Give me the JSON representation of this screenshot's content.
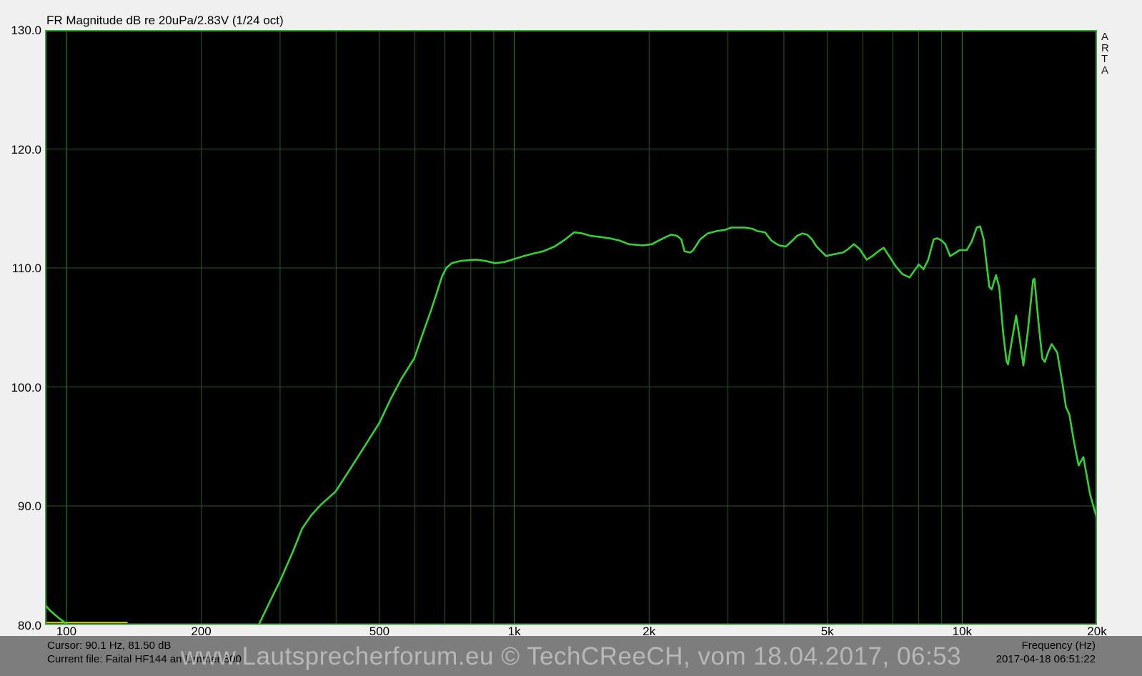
{
  "header": {
    "title": "FR Magnitude dB re 20uPa/2.83V (1/24 oct)"
  },
  "branding": {
    "vertical_label": "ARTA",
    "letters": [
      "A",
      "R",
      "T",
      "A"
    ]
  },
  "colors": {
    "page_bg": "#f0f0f0",
    "plot_bg": "#000000",
    "plot_border": "#3fa03f",
    "grid_minor": "#235c23",
    "grid_major": "#2d8f2d",
    "curve": "#32d232",
    "cursor": "#c8c832",
    "statusbar_bg": "#7d7d7d",
    "statusbar_text": "#000000",
    "watermark_text": "#c8c8c8"
  },
  "statusbar": {
    "cursor_text": "Cursor: 90.1 Hz, 81.50 dB",
    "file_text": "Current file: Faital HF144 an Limmer 800",
    "axis_label": "Frequency (Hz)",
    "timestamp": "2017-04-18  06:51:22",
    "watermark": "www.Lautsprecherforum.eu © TechCReeCH, vom 18.04.2017, 06:53"
  },
  "chart_data": {
    "type": "line",
    "title": "FR Magnitude dB re 20uPa/2.83V (1/24 oct)",
    "xlabel": "Frequency (Hz)",
    "ylabel": "dB",
    "x_scale": "log",
    "x_range_hz": [
      89.6,
      20000
    ],
    "y_range_db": [
      80,
      130
    ],
    "grid": "on",
    "y_ticks": [
      {
        "db": 130,
        "label": "130.0"
      },
      {
        "db": 120,
        "label": "120.0"
      },
      {
        "db": 110,
        "label": "110.0"
      },
      {
        "db": 100,
        "label": "100.0"
      },
      {
        "db": 90,
        "label": "90.0"
      },
      {
        "db": 80,
        "label": "80.0"
      }
    ],
    "x_ticks": [
      {
        "hz": 100,
        "label": "100"
      },
      {
        "hz": 200,
        "label": "200"
      },
      {
        "hz": 500,
        "label": "500"
      },
      {
        "hz": 1000,
        "label": "1k"
      },
      {
        "hz": 2000,
        "label": "2k"
      },
      {
        "hz": 5000,
        "label": "5k"
      },
      {
        "hz": 10000,
        "label": "10k"
      },
      {
        "hz": 20000,
        "label": "20k"
      }
    ],
    "y_gridlines_db": [
      120,
      110,
      100,
      90
    ],
    "x_gridlines": [
      {
        "hz": 100,
        "major": true
      },
      {
        "hz": 200
      },
      {
        "hz": 300
      },
      {
        "hz": 400
      },
      {
        "hz": 500
      },
      {
        "hz": 600
      },
      {
        "hz": 700
      },
      {
        "hz": 800
      },
      {
        "hz": 900
      },
      {
        "hz": 1000,
        "major": true
      },
      {
        "hz": 2000
      },
      {
        "hz": 3000
      },
      {
        "hz": 4000
      },
      {
        "hz": 5000
      },
      {
        "hz": 6000
      },
      {
        "hz": 7000
      },
      {
        "hz": 8000
      },
      {
        "hz": 9000
      },
      {
        "hz": 10000,
        "major": true
      }
    ],
    "cursor_marker": {
      "db": 80.2,
      "from_hz": 90,
      "to_hz": 137
    },
    "series": [
      {
        "name": "FR magnitude (1/24 oct)",
        "color": "#32d232",
        "points": [
          [
            89.6,
            81.7
          ],
          [
            92,
            81.2
          ],
          [
            96,
            80.6
          ],
          [
            100,
            80.1
          ],
          [
            104,
            79.5
          ],
          [
            115,
            78.6
          ],
          [
            150,
            78.0
          ],
          [
            220,
            78.2
          ],
          [
            255,
            79.0
          ],
          [
            268,
            79.9
          ],
          [
            285,
            82.0
          ],
          [
            300,
            83.7
          ],
          [
            320,
            86.1
          ],
          [
            336,
            88.1
          ],
          [
            352,
            89.2
          ],
          [
            370,
            90.1
          ],
          [
            399,
            91.2
          ],
          [
            430,
            93.1
          ],
          [
            465,
            95.1
          ],
          [
            500,
            97.0
          ],
          [
            530,
            99.0
          ],
          [
            560,
            100.7
          ],
          [
            598,
            102.4
          ],
          [
            625,
            104.5
          ],
          [
            650,
            106.3
          ],
          [
            670,
            107.8
          ],
          [
            690,
            109.3
          ],
          [
            705,
            110.0
          ],
          [
            725,
            110.4
          ],
          [
            760,
            110.6
          ],
          [
            820,
            110.7
          ],
          [
            860,
            110.6
          ],
          [
            906,
            110.4
          ],
          [
            950,
            110.5
          ],
          [
            990,
            110.7
          ],
          [
            1050,
            111.0
          ],
          [
            1100,
            111.2
          ],
          [
            1160,
            111.4
          ],
          [
            1230,
            111.8
          ],
          [
            1300,
            112.4
          ],
          [
            1360,
            113.0
          ],
          [
            1420,
            112.9
          ],
          [
            1480,
            112.7
          ],
          [
            1560,
            112.6
          ],
          [
            1630,
            112.5
          ],
          [
            1720,
            112.3
          ],
          [
            1800,
            112.0
          ],
          [
            1940,
            111.9
          ],
          [
            2030,
            112.0
          ],
          [
            2100,
            112.3
          ],
          [
            2180,
            112.6
          ],
          [
            2240,
            112.8
          ],
          [
            2310,
            112.7
          ],
          [
            2360,
            112.4
          ],
          [
            2400,
            111.4
          ],
          [
            2470,
            111.3
          ],
          [
            2510,
            111.5
          ],
          [
            2600,
            112.4
          ],
          [
            2700,
            112.9
          ],
          [
            2830,
            113.1
          ],
          [
            2950,
            113.2
          ],
          [
            3060,
            113.4
          ],
          [
            3270,
            113.4
          ],
          [
            3400,
            113.3
          ],
          [
            3490,
            113.1
          ],
          [
            3630,
            113.0
          ],
          [
            3750,
            112.3
          ],
          [
            3900,
            111.9
          ],
          [
            4040,
            111.8
          ],
          [
            4150,
            112.2
          ],
          [
            4280,
            112.7
          ],
          [
            4400,
            112.9
          ],
          [
            4510,
            112.8
          ],
          [
            4620,
            112.4
          ],
          [
            4730,
            111.8
          ],
          [
            4970,
            111.0
          ],
          [
            5090,
            111.1
          ],
          [
            5250,
            111.2
          ],
          [
            5420,
            111.3
          ],
          [
            5570,
            111.6
          ],
          [
            5730,
            112.0
          ],
          [
            5900,
            111.6
          ],
          [
            6120,
            110.7
          ],
          [
            6300,
            111.0
          ],
          [
            6500,
            111.4
          ],
          [
            6680,
            111.7
          ],
          [
            6900,
            110.9
          ],
          [
            7090,
            110.2
          ],
          [
            7350,
            109.5
          ],
          [
            7630,
            109.2
          ],
          [
            7900,
            110.0
          ],
          [
            8000,
            110.3
          ],
          [
            8200,
            109.9
          ],
          [
            8400,
            110.7
          ],
          [
            8640,
            112.4
          ],
          [
            8800,
            112.5
          ],
          [
            9000,
            112.3
          ],
          [
            9170,
            112.0
          ],
          [
            9400,
            111.0
          ],
          [
            9600,
            111.2
          ],
          [
            9870,
            111.5
          ],
          [
            10240,
            111.5
          ],
          [
            10500,
            112.2
          ],
          [
            10780,
            113.4
          ],
          [
            10970,
            113.5
          ],
          [
            11170,
            112.4
          ],
          [
            11300,
            110.8
          ],
          [
            11500,
            108.4
          ],
          [
            11640,
            108.2
          ],
          [
            11900,
            109.4
          ],
          [
            12100,
            108.4
          ],
          [
            12350,
            104.5
          ],
          [
            12560,
            102.2
          ],
          [
            12660,
            101.9
          ],
          [
            12900,
            103.8
          ],
          [
            13200,
            106.0
          ],
          [
            13450,
            104.0
          ],
          [
            13700,
            101.8
          ],
          [
            14000,
            104.5
          ],
          [
            14400,
            109.0
          ],
          [
            14500,
            109.1
          ],
          [
            14800,
            105.5
          ],
          [
            15100,
            102.4
          ],
          [
            15300,
            102.1
          ],
          [
            15550,
            102.9
          ],
          [
            15850,
            103.6
          ],
          [
            16300,
            102.9
          ],
          [
            16750,
            100.3
          ],
          [
            17050,
            98.3
          ],
          [
            17350,
            97.7
          ],
          [
            17750,
            95.5
          ],
          [
            18200,
            93.4
          ],
          [
            18650,
            94.1
          ],
          [
            19300,
            91.0
          ],
          [
            19900,
            89.2
          ]
        ]
      }
    ]
  }
}
